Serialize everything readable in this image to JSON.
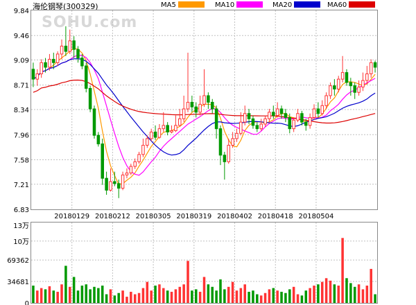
{
  "chart_data": {
    "type": "candlestick",
    "title": "海伦钢琴(300329)",
    "watermark": "SOHU.com",
    "legend": [
      {
        "name": "MA5",
        "color": "#ff9900"
      },
      {
        "name": "MA10",
        "color": "#ff00ff"
      },
      {
        "name": "MA20",
        "color": "#0000cc"
      },
      {
        "name": "MA60",
        "color": "#dd0000"
      }
    ],
    "colors": {
      "up": "#ff3333",
      "down": "#009900",
      "grid": "#c0c0c0"
    },
    "price_axis": {
      "ticks": [
        "9.84",
        "9.46",
        "9.09",
        "8.71",
        "8.34",
        "7.96",
        "7.58",
        "7.21",
        "6.83"
      ],
      "range": [
        6.83,
        9.84
      ]
    },
    "volume_axis": {
      "ticks": [
        "13万",
        "10万",
        "69362",
        "34681",
        "0"
      ],
      "range": [
        0,
        130000
      ]
    },
    "x_labels": [
      {
        "label": "20180129",
        "index": 10
      },
      {
        "label": "20180212",
        "index": 20
      },
      {
        "label": "20180305",
        "index": 30
      },
      {
        "label": "20180319",
        "index": 40
      },
      {
        "label": "20180402",
        "index": 50
      },
      {
        "label": "20180418",
        "index": 60
      },
      {
        "label": "20180504",
        "index": 70
      }
    ],
    "candles": [
      [
        8.95,
        8.8,
        9.05,
        8.68,
        28000
      ],
      [
        8.8,
        8.88,
        8.95,
        8.7,
        20000
      ],
      [
        8.88,
        9.05,
        9.1,
        8.82,
        24000
      ],
      [
        9.05,
        8.98,
        9.12,
        8.9,
        22000
      ],
      [
        8.98,
        9.1,
        9.18,
        8.93,
        27000
      ],
      [
        9.1,
        9.05,
        9.2,
        8.95,
        20000
      ],
      [
        9.05,
        9.18,
        9.22,
        9.0,
        18000
      ],
      [
        9.18,
        9.3,
        9.4,
        9.1,
        30000
      ],
      [
        9.3,
        9.22,
        9.6,
        9.15,
        60000
      ],
      [
        9.22,
        9.38,
        9.55,
        9.18,
        26000
      ],
      [
        9.38,
        9.25,
        9.45,
        9.12,
        42000
      ],
      [
        9.25,
        9.12,
        9.3,
        9.05,
        20000
      ],
      [
        9.12,
        9.0,
        9.18,
        8.95,
        28000
      ],
      [
        9.0,
        8.66,
        9.05,
        8.6,
        30000
      ],
      [
        8.66,
        8.35,
        8.7,
        8.3,
        22000
      ],
      [
        8.35,
        7.95,
        8.4,
        7.9,
        26000
      ],
      [
        7.95,
        7.82,
        8.0,
        7.78,
        24000
      ],
      [
        7.82,
        7.3,
        7.9,
        7.2,
        28000
      ],
      [
        7.3,
        7.12,
        7.4,
        7.05,
        14000
      ],
      [
        7.12,
        7.25,
        7.45,
        7.1,
        22000
      ],
      [
        7.25,
        7.22,
        7.4,
        7.18,
        12000
      ],
      [
        7.22,
        7.15,
        7.28,
        7.0,
        16000
      ],
      [
        7.15,
        7.35,
        7.4,
        7.12,
        20000
      ],
      [
        7.35,
        7.38,
        7.45,
        7.3,
        10000
      ],
      [
        7.38,
        7.48,
        7.52,
        7.35,
        18000
      ],
      [
        7.48,
        7.55,
        7.6,
        7.44,
        14000
      ],
      [
        7.55,
        7.66,
        7.7,
        7.52,
        16000
      ],
      [
        7.66,
        7.8,
        7.9,
        7.62,
        24000
      ],
      [
        7.8,
        7.9,
        7.95,
        7.76,
        34000
      ],
      [
        7.9,
        8.0,
        8.05,
        7.86,
        20000
      ],
      [
        8.0,
        7.92,
        8.1,
        7.88,
        28000
      ],
      [
        7.92,
        8.05,
        8.12,
        7.9,
        30000
      ],
      [
        8.05,
        8.1,
        8.3,
        8.0,
        24000
      ],
      [
        8.1,
        8.0,
        8.15,
        7.95,
        20000
      ],
      [
        8.0,
        8.02,
        8.1,
        7.98,
        18000
      ],
      [
        8.02,
        8.1,
        8.25,
        8.0,
        22000
      ],
      [
        8.1,
        8.2,
        8.35,
        8.08,
        26000
      ],
      [
        8.2,
        8.35,
        8.55,
        8.15,
        30000
      ],
      [
        8.35,
        8.45,
        9.2,
        8.3,
        68000
      ],
      [
        8.45,
        8.38,
        8.55,
        8.3,
        20000
      ],
      [
        8.38,
        8.3,
        8.45,
        8.22,
        22000
      ],
      [
        8.3,
        8.42,
        8.55,
        8.25,
        18000
      ],
      [
        8.42,
        8.55,
        8.95,
        8.38,
        42000
      ],
      [
        8.55,
        8.45,
        8.6,
        8.35,
        30000
      ],
      [
        8.45,
        8.35,
        8.5,
        8.28,
        26000
      ],
      [
        8.35,
        8.05,
        8.4,
        7.9,
        20000
      ],
      [
        8.05,
        7.65,
        8.1,
        7.5,
        38000
      ],
      [
        7.65,
        7.55,
        7.7,
        7.28,
        22000
      ],
      [
        7.55,
        7.8,
        7.9,
        7.52,
        26000
      ],
      [
        7.8,
        7.9,
        8.0,
        7.76,
        34000
      ],
      [
        7.9,
        7.98,
        8.05,
        7.85,
        20000
      ],
      [
        7.98,
        8.15,
        8.3,
        7.95,
        24000
      ],
      [
        8.15,
        8.28,
        8.4,
        8.1,
        30000
      ],
      [
        8.28,
        8.2,
        8.35,
        8.12,
        18000
      ],
      [
        8.2,
        8.1,
        8.25,
        8.05,
        20000
      ],
      [
        8.1,
        8.05,
        8.15,
        8.0,
        14000
      ],
      [
        8.05,
        8.12,
        8.2,
        8.02,
        12000
      ],
      [
        8.12,
        8.2,
        8.25,
        8.08,
        16000
      ],
      [
        8.2,
        8.3,
        8.35,
        8.15,
        22000
      ],
      [
        8.3,
        8.25,
        8.4,
        8.2,
        24000
      ],
      [
        8.25,
        8.35,
        8.45,
        8.22,
        20000
      ],
      [
        8.35,
        8.28,
        8.4,
        8.2,
        18000
      ],
      [
        8.28,
        8.22,
        8.35,
        8.15,
        16000
      ],
      [
        8.22,
        8.05,
        8.28,
        7.98,
        22000
      ],
      [
        8.05,
        8.18,
        8.22,
        8.0,
        26000
      ],
      [
        8.18,
        8.28,
        8.35,
        8.15,
        14000
      ],
      [
        8.28,
        8.15,
        8.32,
        8.1,
        12000
      ],
      [
        8.15,
        8.1,
        8.2,
        8.02,
        20000
      ],
      [
        8.1,
        8.22,
        8.28,
        8.05,
        24000
      ],
      [
        8.22,
        8.35,
        8.42,
        8.18,
        28000
      ],
      [
        8.35,
        8.28,
        8.45,
        8.22,
        30000
      ],
      [
        8.28,
        8.4,
        8.48,
        8.25,
        34000
      ],
      [
        8.4,
        8.55,
        8.6,
        8.35,
        40000
      ],
      [
        8.55,
        8.7,
        8.75,
        8.5,
        36000
      ],
      [
        8.7,
        8.65,
        8.8,
        8.55,
        30000
      ],
      [
        8.65,
        8.8,
        8.85,
        8.6,
        28000
      ],
      [
        8.8,
        8.9,
        9.15,
        8.75,
        105000
      ],
      [
        8.9,
        8.75,
        8.95,
        8.7,
        40000
      ],
      [
        8.75,
        8.7,
        8.82,
        8.55,
        32000
      ],
      [
        8.7,
        8.6,
        8.75,
        8.5,
        26000
      ],
      [
        8.6,
        8.68,
        8.78,
        8.55,
        30000
      ],
      [
        8.68,
        8.78,
        8.9,
        8.62,
        22000
      ],
      [
        8.78,
        8.88,
        9.0,
        8.72,
        28000
      ],
      [
        8.88,
        9.05,
        9.1,
        8.82,
        55000
      ],
      [
        9.05,
        8.98,
        9.08,
        8.9,
        14000
      ]
    ]
  }
}
